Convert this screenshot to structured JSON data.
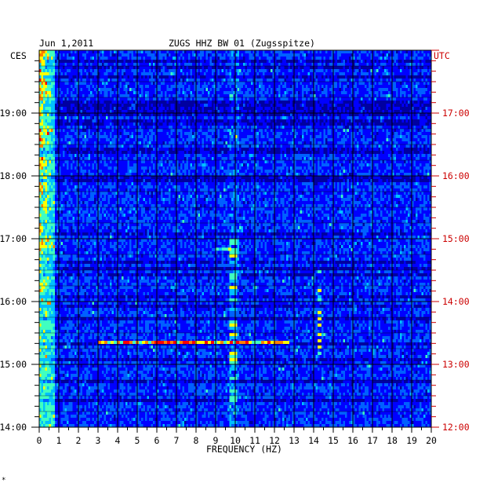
{
  "header": {
    "date": "Jun 1,2011",
    "station": "ZUGS HHZ BW 01 (Zugsspitze)",
    "left_zone": "CES",
    "right_zone": "UTC"
  },
  "footer_mark": "*",
  "chart_data": {
    "type": "heatmap",
    "title": "ZUGS HHZ BW 01 (Zugsspitze)",
    "xlabel": "FREQUENCY (HZ)",
    "xlim": [
      0,
      20
    ],
    "x_ticks": [
      "0",
      "1",
      "2",
      "3",
      "4",
      "5",
      "6",
      "7",
      "8",
      "9",
      "10",
      "11",
      "12",
      "13",
      "14",
      "15",
      "16",
      "17",
      "18",
      "19",
      "20"
    ],
    "left_axis": {
      "zone": "CES",
      "range_hours": [
        14,
        20
      ],
      "ticks": [
        "19:00",
        "18:00",
        "17:00",
        "16:00",
        "15:00",
        "14:00"
      ]
    },
    "right_axis": {
      "zone": "UTC",
      "range_hours": [
        12,
        18
      ],
      "ticks": [
        "17:00",
        "16:00",
        "15:00",
        "14:00",
        "13:00",
        "12:00"
      ]
    },
    "colormap": [
      "#0000a0",
      "#0000ff",
      "#0060ff",
      "#00c0ff",
      "#40ffc0",
      "#ffff00",
      "#ff8000",
      "#ff0000"
    ],
    "background_color": "#0000cc",
    "features": [
      {
        "description": "strong low-frequency band",
        "freq_hz": [
          0,
          0.8
        ],
        "intensity": "high"
      },
      {
        "description": "persistent line",
        "freq_hz": [
          9.7,
          10.1
        ],
        "time_ces": [
          "14:00",
          "17:00"
        ],
        "intensity": "medium"
      },
      {
        "description": "broadband transient",
        "freq_hz": [
          3,
          12.7
        ],
        "time_ces": "15:21",
        "intensity": "very high"
      },
      {
        "description": "transient",
        "freq_hz": [
          9,
          9.8
        ],
        "time_ces": "16:50",
        "intensity": "high"
      },
      {
        "description": "transient",
        "freq_hz": [
          14.2,
          14.4
        ],
        "time_ces": [
          "15:10",
          "16:30"
        ],
        "intensity": "medium"
      }
    ]
  }
}
